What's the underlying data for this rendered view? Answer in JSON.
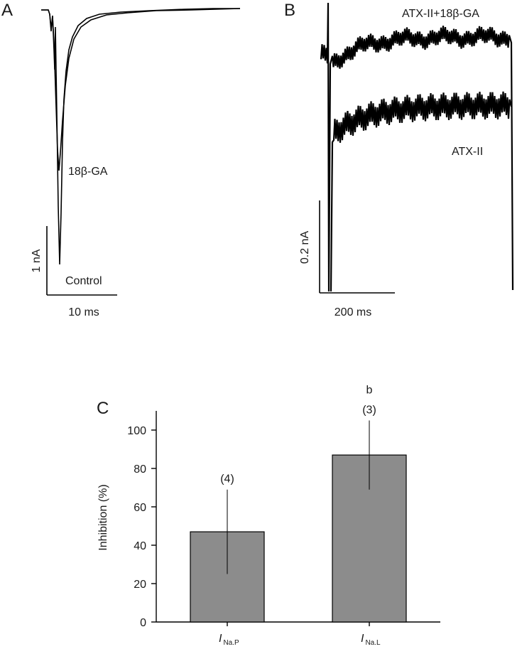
{
  "panel_a": {
    "letter": "A",
    "trace_labels": [
      "18β-GA",
      "Control"
    ],
    "scale_bar": {
      "y_label": "1 nA",
      "x_label": "10 ms"
    }
  },
  "panel_b": {
    "letter": "B",
    "trace_labels": [
      "ATX-II+18β-GA",
      "ATX-II"
    ],
    "scale_bar": {
      "y_label": "0.2 nA",
      "x_label": "200 ms"
    }
  },
  "panel_c": {
    "letter": "C"
  },
  "chart_data": {
    "type": "bar",
    "categories": [
      {
        "main": "I",
        "sub": "Na.P"
      },
      {
        "main": "I",
        "sub": "Na.L"
      }
    ],
    "values": [
      47,
      87
    ],
    "error": [
      22,
      18
    ],
    "annotations": [
      {
        "n": "(4)",
        "sig": ""
      },
      {
        "n": "(3)",
        "sig": "b"
      }
    ],
    "ylabel": "Inhibition (%)",
    "xlabel": "",
    "ylim": [
      0,
      110
    ],
    "yticks": [
      0,
      20,
      40,
      60,
      80,
      100
    ],
    "bar_color": "#8c8c8c",
    "grid": false
  }
}
